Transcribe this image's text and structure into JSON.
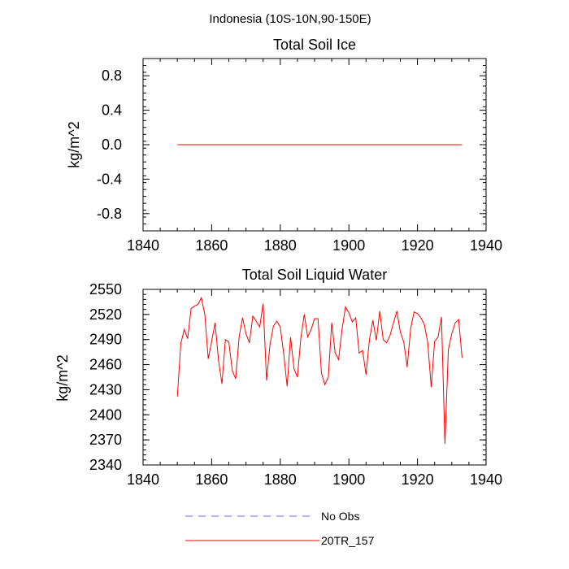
{
  "figure": {
    "main_title": "Indonesia (10S-10N,90-150E)"
  },
  "chart_data": [
    {
      "type": "line",
      "title": "Total Soil Ice",
      "xlabel": "",
      "ylabel": "kg/m^2",
      "xlim": [
        1840,
        1940
      ],
      "ylim": [
        -1.0,
        1.0
      ],
      "xticks": [
        1840,
        1860,
        1880,
        1900,
        1920,
        1940
      ],
      "yticks": [
        -0.8,
        -0.4,
        0.0,
        0.4,
        0.8
      ],
      "ytick_labels": [
        "-0.8",
        "-0.4",
        "0.0",
        "0.4",
        "0.8"
      ],
      "grid": false,
      "series": [
        {
          "name": "20TR_157",
          "color": "#ff0000",
          "x_start": 1850,
          "x_step": 1,
          "values": [
            0,
            0,
            0,
            0,
            0,
            0,
            0,
            0,
            0,
            0,
            0,
            0,
            0,
            0,
            0,
            0,
            0,
            0,
            0,
            0,
            0,
            0,
            0,
            0,
            0,
            0,
            0,
            0,
            0,
            0,
            0,
            0,
            0,
            0,
            0,
            0,
            0,
            0,
            0,
            0,
            0,
            0,
            0,
            0,
            0,
            0,
            0,
            0,
            0,
            0,
            0,
            0,
            0,
            0,
            0,
            0,
            0,
            0,
            0,
            0,
            0,
            0,
            0,
            0,
            0,
            0,
            0,
            0,
            0,
            0,
            0,
            0,
            0,
            0,
            0,
            0,
            0,
            0,
            0,
            0,
            0,
            0,
            0,
            0
          ]
        }
      ]
    },
    {
      "type": "line",
      "title": "Total Soil Liquid Water",
      "xlabel": "",
      "ylabel": "kg/m^2",
      "xlim": [
        1840,
        1940
      ],
      "ylim": [
        2340,
        2550
      ],
      "xticks": [
        1840,
        1860,
        1880,
        1900,
        1920,
        1940
      ],
      "yticks": [
        2340,
        2370,
        2400,
        2430,
        2460,
        2490,
        2520,
        2550
      ],
      "ytick_labels": [
        "2340",
        "2370",
        "2400",
        "2430",
        "2460",
        "2490",
        "2520",
        "2550"
      ],
      "grid": false,
      "series": [
        {
          "name": "20TR_157",
          "color": "#ff0000",
          "x_start": 1850,
          "x_step": 1,
          "values": [
            2422,
            2485,
            2502,
            2491,
            2527,
            2530,
            2532,
            2540,
            2520,
            2467,
            2488,
            2510,
            2465,
            2437,
            2490,
            2487,
            2453,
            2443,
            2493,
            2516,
            2497,
            2486,
            2518,
            2512,
            2505,
            2533,
            2441,
            2484,
            2506,
            2512,
            2505,
            2473,
            2434,
            2493,
            2455,
            2445,
            2492,
            2520,
            2493,
            2502,
            2515,
            2515,
            2450,
            2436,
            2445,
            2510,
            2474,
            2466,
            2502,
            2529,
            2522,
            2511,
            2516,
            2474,
            2477,
            2448,
            2490,
            2513,
            2489,
            2524,
            2490,
            2486,
            2495,
            2510,
            2524,
            2499,
            2487,
            2457,
            2503,
            2523,
            2521,
            2516,
            2508,
            2486,
            2433,
            2488,
            2493,
            2517,
            2365,
            2478,
            2497,
            2510,
            2514,
            2468
          ]
        }
      ]
    }
  ],
  "legend": {
    "items": [
      {
        "label": "No Obs",
        "color": "#6b6bdc",
        "style": "dashed"
      },
      {
        "label": "20TR_157",
        "color": "#ff0000",
        "style": "solid"
      }
    ]
  }
}
